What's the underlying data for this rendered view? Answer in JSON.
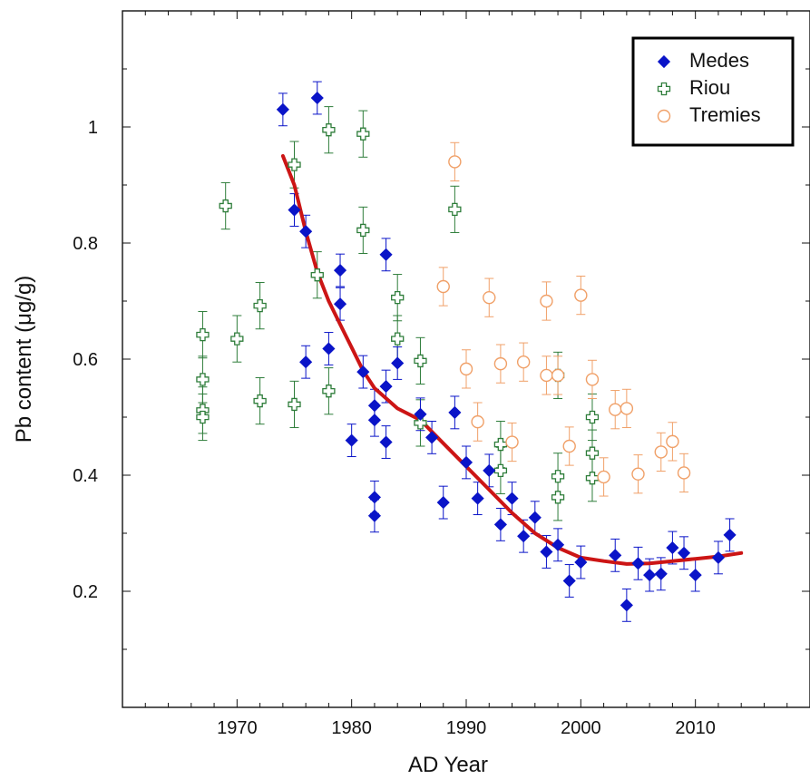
{
  "chart_data": {
    "type": "scatter",
    "xlabel": "AD Year",
    "ylabel": "Pb content (μg/g)",
    "xlim": [
      1960,
      2020
    ],
    "ylim": [
      0,
      1.2
    ],
    "x_ticks": [
      1970,
      1980,
      1990,
      2000,
      2010
    ],
    "x_tick_labels": [
      "1970",
      "1980",
      "1990",
      "2000",
      "2010"
    ],
    "y_ticks": [
      0.2,
      0.4,
      0.6,
      0.8,
      1.0
    ],
    "y_tick_labels": [
      "0.2",
      "0.4",
      "0.6",
      "0.8",
      "1"
    ],
    "grid": false,
    "legend_position": "top-right",
    "series": [
      {
        "name": "Medes",
        "marker": "diamond",
        "color": "#0a14c8",
        "err": 0.028,
        "points": [
          [
            1974,
            1.03
          ],
          [
            1975,
            0.857
          ],
          [
            1976,
            0.82
          ],
          [
            1976,
            0.595
          ],
          [
            1977,
            1.05
          ],
          [
            1978,
            0.618
          ],
          [
            1979,
            0.753
          ],
          [
            1979,
            0.695
          ],
          [
            1980,
            0.46
          ],
          [
            1981,
            0.578
          ],
          [
            1982,
            0.52
          ],
          [
            1982,
            0.495
          ],
          [
            1982,
            0.362
          ],
          [
            1982,
            0.33
          ],
          [
            1983,
            0.78
          ],
          [
            1983,
            0.553
          ],
          [
            1983,
            0.457
          ],
          [
            1984,
            0.593
          ],
          [
            1986,
            0.505
          ],
          [
            1987,
            0.465
          ],
          [
            1988,
            0.353
          ],
          [
            1989,
            0.508
          ],
          [
            1990,
            0.422
          ],
          [
            1991,
            0.36
          ],
          [
            1992,
            0.408
          ],
          [
            1993,
            0.315
          ],
          [
            1994,
            0.36
          ],
          [
            1995,
            0.295
          ],
          [
            1996,
            0.327
          ],
          [
            1997,
            0.268
          ],
          [
            1998,
            0.28
          ],
          [
            1999,
            0.218
          ],
          [
            2000,
            0.25
          ],
          [
            2003,
            0.262
          ],
          [
            2004,
            0.176
          ],
          [
            2005,
            0.248
          ],
          [
            2006,
            0.228
          ],
          [
            2007,
            0.23
          ],
          [
            2008,
            0.275
          ],
          [
            2009,
            0.266
          ],
          [
            2010,
            0.228
          ],
          [
            2012,
            0.258
          ],
          [
            2013,
            0.297
          ]
        ]
      },
      {
        "name": "Riou",
        "marker": "cross",
        "color": "#2e7d3a",
        "err": 0.04,
        "points": [
          [
            1967,
            0.642
          ],
          [
            1967,
            0.565
          ],
          [
            1967,
            0.512
          ],
          [
            1967,
            0.5
          ],
          [
            1969,
            0.864
          ],
          [
            1970,
            0.635
          ],
          [
            1972,
            0.692
          ],
          [
            1972,
            0.528
          ],
          [
            1975,
            0.935
          ],
          [
            1975,
            0.522
          ],
          [
            1977,
            0.745
          ],
          [
            1978,
            0.995
          ],
          [
            1978,
            0.545
          ],
          [
            1981,
            0.988
          ],
          [
            1981,
            0.822
          ],
          [
            1984,
            0.706
          ],
          [
            1984,
            0.635
          ],
          [
            1986,
            0.597
          ],
          [
            1986,
            0.49
          ],
          [
            1989,
            0.858
          ],
          [
            1993,
            0.453
          ],
          [
            1993,
            0.408
          ],
          [
            1998,
            0.572
          ],
          [
            1998,
            0.398
          ],
          [
            1998,
            0.362
          ],
          [
            2001,
            0.5
          ],
          [
            2001,
            0.438
          ],
          [
            2001,
            0.395
          ]
        ]
      },
      {
        "name": "Tremies",
        "marker": "circle",
        "color": "#f0a068",
        "err": 0.033,
        "points": [
          [
            1988,
            0.725
          ],
          [
            1989,
            0.94
          ],
          [
            1990,
            0.583
          ],
          [
            1991,
            0.492
          ],
          [
            1992,
            0.706
          ],
          [
            1993,
            0.592
          ],
          [
            1994,
            0.457
          ],
          [
            1995,
            0.595
          ],
          [
            1997,
            0.572
          ],
          [
            1997,
            0.7
          ],
          [
            1998,
            0.572
          ],
          [
            1999,
            0.45
          ],
          [
            2000,
            0.71
          ],
          [
            2001,
            0.565
          ],
          [
            2002,
            0.397
          ],
          [
            2003,
            0.513
          ],
          [
            2004,
            0.515
          ],
          [
            2005,
            0.402
          ],
          [
            2007,
            0.44
          ],
          [
            2008,
            0.458
          ],
          [
            2009,
            0.404
          ]
        ]
      }
    ],
    "trend": {
      "color": "#cc1515",
      "points": [
        [
          1974,
          0.95
        ],
        [
          1975,
          0.9
        ],
        [
          1976,
          0.82
        ],
        [
          1977,
          0.75
        ],
        [
          1978,
          0.7
        ],
        [
          1979,
          0.66
        ],
        [
          1980,
          0.62
        ],
        [
          1981,
          0.58
        ],
        [
          1982,
          0.55
        ],
        [
          1984,
          0.515
        ],
        [
          1986,
          0.495
        ],
        [
          1988,
          0.455
        ],
        [
          1990,
          0.415
        ],
        [
          1992,
          0.375
        ],
        [
          1994,
          0.335
        ],
        [
          1996,
          0.3
        ],
        [
          1998,
          0.275
        ],
        [
          2000,
          0.258
        ],
        [
          2002,
          0.252
        ],
        [
          2004,
          0.247
        ],
        [
          2006,
          0.248
        ],
        [
          2008,
          0.252
        ],
        [
          2010,
          0.256
        ],
        [
          2012,
          0.26
        ],
        [
          2014,
          0.266
        ]
      ]
    }
  }
}
